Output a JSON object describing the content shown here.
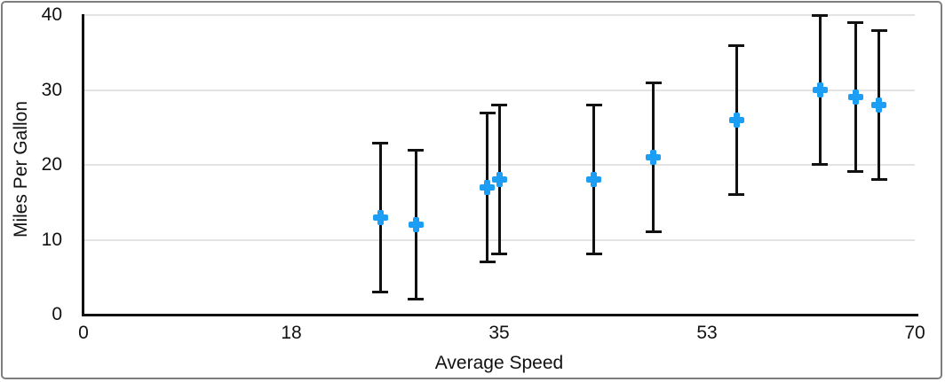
{
  "figure": {
    "background_color": "#ffffff",
    "border_color": "#7e7e7e"
  },
  "chart_data": {
    "type": "scatter",
    "title": "",
    "xlabel": "Average Speed",
    "ylabel": "Miles Per Gallon",
    "xlim": [
      0,
      70
    ],
    "ylim": [
      0,
      40
    ],
    "x_tick_labels": [
      "0",
      "18",
      "35",
      "53",
      "70"
    ],
    "y_tick_labels": [
      "0",
      "10",
      "20",
      "30",
      "40"
    ],
    "grid": "horizontal gridlines at each y tick, no vertical gridlines",
    "legend_position": "none",
    "marker_style": "plus",
    "marker_color": "#1c9ef4",
    "gridline_color": "#e3e3e3",
    "axis_color": "#111111",
    "error_bar_color": "#111111",
    "error_bars": "vertical, symmetric y ± 10 on every point, with end caps",
    "series": [
      {
        "name": "Miles Per Gallon",
        "points": [
          {
            "x": 25,
            "y": 13,
            "y_err": 10
          },
          {
            "x": 28,
            "y": 12,
            "y_err": 10
          },
          {
            "x": 34,
            "y": 17,
            "y_err": 10
          },
          {
            "x": 35,
            "y": 18,
            "y_err": 10
          },
          {
            "x": 43,
            "y": 18,
            "y_err": 10
          },
          {
            "x": 48,
            "y": 21,
            "y_err": 10
          },
          {
            "x": 55,
            "y": 26,
            "y_err": 10
          },
          {
            "x": 62,
            "y": 30,
            "y_err": 10
          },
          {
            "x": 65,
            "y": 29,
            "y_err": 10
          },
          {
            "x": 67,
            "y": 28,
            "y_err": 10
          }
        ]
      }
    ]
  }
}
